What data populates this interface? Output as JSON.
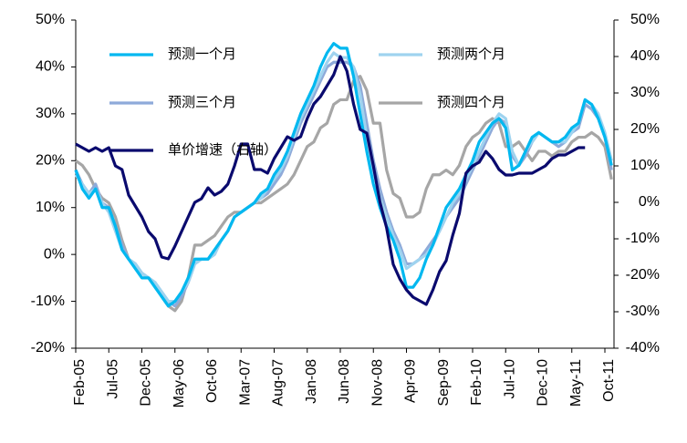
{
  "chart_data": {
    "type": "line",
    "categories": [
      "Feb-05",
      null,
      null,
      null,
      null,
      "Jul-05",
      null,
      null,
      null,
      null,
      "Dec-05",
      null,
      null,
      null,
      null,
      "May-06",
      null,
      null,
      null,
      null,
      "Oct-06",
      null,
      null,
      null,
      null,
      "Mar-07",
      null,
      null,
      null,
      null,
      "Aug-07",
      null,
      null,
      null,
      null,
      "Jan-08",
      null,
      null,
      null,
      null,
      "Jun-08",
      null,
      null,
      null,
      null,
      "Nov-08",
      null,
      null,
      null,
      null,
      "Apr-09",
      null,
      null,
      null,
      null,
      "Sep-09",
      null,
      null,
      null,
      null,
      "Feb-10",
      null,
      null,
      null,
      null,
      "Jul-10",
      null,
      null,
      null,
      null,
      "Dec-10",
      null,
      null,
      null,
      null,
      "May-11",
      null,
      null,
      null,
      null,
      "Oct-11",
      null
    ],
    "series": [
      {
        "name": "预测一个月",
        "color": "#00b8f0",
        "values": [
          18,
          14,
          12,
          14,
          10,
          10,
          6,
          1,
          -1,
          -3,
          -5,
          -5,
          -7,
          -9,
          -11,
          -10,
          -8,
          -5,
          -1,
          -1,
          -1,
          1,
          3,
          5,
          8,
          9,
          10,
          11,
          13,
          14,
          17,
          19,
          22,
          26,
          30,
          33,
          36,
          40,
          43,
          45,
          44,
          44,
          38,
          30,
          22,
          15,
          10,
          6,
          3,
          -1,
          -7,
          -7,
          -5,
          -1,
          2,
          6,
          10,
          12,
          14,
          17,
          20,
          24,
          26,
          28,
          29,
          27,
          18,
          19,
          22,
          25,
          26,
          25,
          24,
          24,
          25,
          27,
          28,
          33,
          32,
          29,
          25,
          19
        ]
      },
      {
        "name": "预测两个月",
        "color": "#9fd3ef",
        "values": [
          17,
          15,
          13,
          14,
          11,
          9,
          5,
          1,
          -1,
          -2,
          -4,
          -5,
          -6,
          -8,
          -10,
          -10,
          -8,
          -6,
          -2,
          -1,
          -1,
          0,
          3,
          5,
          8,
          9,
          10,
          11,
          12,
          14,
          16,
          18,
          21,
          25,
          29,
          32,
          35,
          38,
          41,
          43,
          42,
          42,
          40,
          34,
          25,
          18,
          12,
          8,
          4,
          1,
          -3,
          -2,
          -1,
          0,
          2,
          5,
          8,
          11,
          13,
          16,
          19,
          22,
          25,
          28,
          30,
          29,
          22,
          19,
          22,
          24,
          26,
          25,
          24,
          24,
          24,
          26,
          28,
          33,
          32,
          30,
          26,
          20
        ]
      },
      {
        "name": "预测三个月",
        "color": "#8eaad9",
        "values": [
          18,
          15,
          13,
          15,
          11,
          10,
          6,
          2,
          -1,
          -2,
          -4,
          -5,
          -6,
          -8,
          -10,
          -11,
          -9,
          -6,
          -2,
          -1,
          -1,
          1,
          3,
          5,
          8,
          9,
          10,
          11,
          12,
          13,
          15,
          17,
          20,
          24,
          28,
          31,
          34,
          37,
          40,
          41,
          41,
          41,
          40,
          36,
          28,
          20,
          14,
          9,
          5,
          2,
          -2,
          -2,
          -1,
          1,
          3,
          5,
          8,
          10,
          12,
          15,
          18,
          21,
          24,
          27,
          29,
          28,
          21,
          19,
          21,
          24,
          26,
          25,
          24,
          23,
          24,
          26,
          27,
          32,
          31,
          29,
          25,
          18
        ]
      },
      {
        "name": "预测四个月",
        "color": "#a6a6a6",
        "values": [
          20,
          19,
          17,
          14,
          12,
          11,
          8,
          3,
          -1,
          -2,
          -4,
          -5,
          -6,
          -9,
          -11,
          -12,
          -10,
          -5,
          2,
          2,
          3,
          4,
          6,
          8,
          9,
          9,
          10,
          11,
          11,
          12,
          13,
          14,
          15,
          17,
          20,
          23,
          24,
          27,
          28,
          32,
          33,
          33,
          37,
          38,
          35,
          28,
          28,
          18,
          13,
          12,
          8,
          8,
          9,
          14,
          17,
          17,
          18,
          17,
          19,
          23,
          25,
          26,
          28,
          29,
          28,
          23,
          23,
          24,
          22,
          20,
          22,
          22,
          21,
          22,
          22,
          24,
          25,
          25,
          26,
          25,
          23,
          16
        ]
      },
      {
        "name": "单价增速（右轴）",
        "color": "#0a0a6e",
        "axis": "y2",
        "values": [
          16,
          15,
          14,
          15,
          14,
          15,
          10,
          9,
          2,
          -1,
          -4,
          -8,
          -10,
          -15,
          -15.5,
          -12,
          -8,
          -4,
          0,
          1,
          4,
          2,
          3,
          5,
          10,
          16,
          16,
          9,
          9,
          8,
          12,
          15,
          18,
          17,
          18,
          23,
          27,
          29,
          32,
          35,
          40,
          36,
          27,
          20,
          19,
          10,
          0,
          -7,
          -17,
          -21,
          -24,
          -26,
          -27,
          -28,
          -24,
          -19,
          -16,
          -9,
          -3,
          8,
          10,
          11,
          14,
          12,
          9,
          7.5,
          7.5,
          8,
          8,
          8,
          9,
          10,
          12,
          13,
          13,
          14,
          15,
          15,
          null,
          null,
          null,
          null
        ]
      }
    ],
    "ylim": [
      -20,
      50
    ],
    "yticks": [
      {
        "value": -20,
        "label": "-20%"
      },
      {
        "value": -10,
        "label": "-10%"
      },
      {
        "value": 0,
        "label": "0%"
      },
      {
        "value": 10,
        "label": "10%"
      },
      {
        "value": 20,
        "label": "20%"
      },
      {
        "value": 30,
        "label": "30%"
      },
      {
        "value": 40,
        "label": "40%"
      },
      {
        "value": 50,
        "label": "50%"
      }
    ],
    "y2lim": [
      -40,
      50
    ],
    "y2ticks": [
      {
        "value": -40,
        "label": "-40%"
      },
      {
        "value": -30,
        "label": "-30%"
      },
      {
        "value": -20,
        "label": "-20%"
      },
      {
        "value": -10,
        "label": "-10%"
      },
      {
        "value": 0,
        "label": "0%"
      },
      {
        "value": 10,
        "label": "10%"
      },
      {
        "value": 20,
        "label": "20%"
      },
      {
        "value": 30,
        "label": "30%"
      },
      {
        "value": 40,
        "label": "40%"
      },
      {
        "value": 50,
        "label": "50%"
      }
    ]
  }
}
